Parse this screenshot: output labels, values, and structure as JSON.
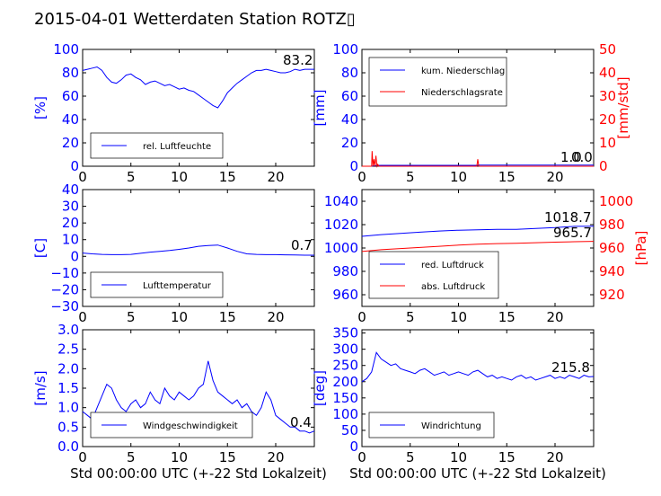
{
  "title": "2015-04-01 Wetterdaten Station ROTZ▯",
  "colors": {
    "primary": "#0000ff",
    "secondary": "#ff0000",
    "light": "#8080ff"
  },
  "chart_data": [
    {
      "id": "humidity",
      "type": "line",
      "ylabel": "[%]",
      "xlim": [
        0,
        24
      ],
      "ylim": [
        0,
        100
      ],
      "xticks": [
        0,
        5,
        10,
        15,
        20
      ],
      "yticks": [
        0,
        20,
        40,
        60,
        80,
        100
      ],
      "legend": {
        "placement": "lower-left",
        "entries": [
          "rel. Luftfeuchte"
        ]
      },
      "readouts": [
        "83.2"
      ],
      "series": [
        {
          "name": "rel. Luftfeuchte",
          "color": "#0000ff",
          "x": [
            0,
            0.5,
            1,
            1.5,
            2,
            2.5,
            3,
            3.5,
            4,
            4.5,
            5,
            5.5,
            6,
            6.5,
            7,
            7.5,
            8,
            8.5,
            9,
            9.5,
            10,
            10.5,
            11,
            11.5,
            12,
            12.5,
            13,
            13.5,
            14,
            14.5,
            15,
            15.5,
            16,
            16.5,
            17,
            17.5,
            18,
            18.5,
            19,
            19.5,
            20,
            20.5,
            21,
            21.5,
            22,
            22.5,
            23,
            23.5,
            24
          ],
          "y": [
            82,
            83,
            84,
            85,
            82,
            76,
            72,
            71,
            74,
            78,
            79,
            76,
            74,
            70,
            72,
            73,
            71,
            69,
            70,
            68,
            66,
            67,
            65,
            64,
            61,
            58,
            55,
            52,
            50,
            56,
            63,
            67,
            71,
            74,
            77,
            80,
            82,
            82,
            83,
            82,
            81,
            80,
            80,
            81,
            83,
            82,
            83,
            83,
            83
          ]
        }
      ]
    },
    {
      "id": "precip",
      "type": "line",
      "ylabel": "[mm]",
      "y2label": "[mm/std]",
      "xlim": [
        0,
        24
      ],
      "ylim": [
        0,
        100
      ],
      "y2lim": [
        0,
        50
      ],
      "xticks": [
        0,
        5,
        10,
        15,
        20
      ],
      "yticks": [
        0,
        20,
        40,
        60,
        80,
        100
      ],
      "y2ticks": [
        0,
        10,
        20,
        30,
        40,
        50
      ],
      "legend": {
        "placement": "upper-left",
        "entries": [
          "kum. Niederschlag",
          "Niederschlagsrate"
        ]
      },
      "readouts": [
        "1.0",
        "0.0"
      ],
      "series": [
        {
          "name": "kum. Niederschlag",
          "color": "#0000ff",
          "axis": "left",
          "x": [
            0,
            1.0,
            1.2,
            1.6,
            2,
            11.9,
            12.1,
            24
          ],
          "y": [
            0,
            0,
            0.4,
            0.7,
            0.8,
            0.8,
            1.0,
            1.0
          ]
        },
        {
          "name": "Niederschlagsrate",
          "color": "#ff0000",
          "axis": "right",
          "x": [
            0,
            1.0,
            1.05,
            1.15,
            1.25,
            1.35,
            1.45,
            1.55,
            1.65,
            1.75,
            11.9,
            12.0,
            12.1,
            24
          ],
          "y": [
            0,
            0,
            6.5,
            0,
            3,
            0,
            4.5,
            0,
            0.8,
            0,
            0,
            3,
            0,
            0
          ]
        }
      ]
    },
    {
      "id": "temp",
      "type": "line",
      "ylabel": "[C]",
      "xlim": [
        0,
        24
      ],
      "ylim": [
        -30,
        40
      ],
      "xticks": [
        0,
        5,
        10,
        15,
        20
      ],
      "yticks": [
        -30,
        -20,
        -10,
        0,
        10,
        20,
        30,
        40
      ],
      "legend": {
        "placement": "lower-left",
        "entries": [
          "Lufttemperatur"
        ]
      },
      "readouts": [
        "0.7"
      ],
      "series": [
        {
          "name": "Lufttemperatur",
          "color": "#0000ff",
          "x": [
            0,
            1,
            2,
            3,
            4,
            5,
            6,
            7,
            8,
            9,
            10,
            11,
            12,
            13,
            14,
            15,
            16,
            17,
            18,
            19,
            20,
            21,
            22,
            23,
            24
          ],
          "y": [
            2,
            1.5,
            1.2,
            1,
            1,
            1.2,
            1.8,
            2.5,
            3,
            3.5,
            4.2,
            5,
            6,
            6.5,
            6.8,
            5,
            3,
            1.5,
            1.2,
            1,
            1,
            0.9,
            0.8,
            0.7,
            0.7
          ]
        }
      ]
    },
    {
      "id": "pressure",
      "type": "line",
      "ylabel": "[hPa]",
      "xlim": [
        0,
        24
      ],
      "ylim": [
        950,
        1050
      ],
      "y2lim": [
        910,
        1010
      ],
      "xticks": [
        0,
        5,
        10,
        15,
        20
      ],
      "yticks": [
        960,
        980,
        1000,
        1020,
        1040
      ],
      "y2ticks": [
        920,
        940,
        960,
        980,
        1000
      ],
      "legend": {
        "placement": "lower-left",
        "entries": [
          "red. Luftdruck",
          "abs. Luftdruck"
        ]
      },
      "readouts": [
        "1018.7",
        "965.7"
      ],
      "series": [
        {
          "name": "red. Luftdruck",
          "color": "#0000ff",
          "axis": "left",
          "x": [
            0,
            2,
            4,
            6,
            8,
            10,
            12,
            14,
            16,
            18,
            20,
            22,
            24
          ],
          "y": [
            1010,
            1011.5,
            1012.5,
            1013.5,
            1014.5,
            1015.2,
            1015.6,
            1016,
            1016,
            1016.8,
            1017.5,
            1018.5,
            1018.7
          ]
        },
        {
          "name": "abs. Luftdruck",
          "color": "#ff0000",
          "axis": "right",
          "x": [
            0,
            2,
            4,
            6,
            8,
            10,
            12,
            14,
            16,
            18,
            20,
            22,
            24
          ],
          "y": [
            957,
            958.5,
            959.5,
            960.5,
            961.5,
            962.5,
            963.3,
            963.8,
            964,
            964.5,
            965,
            965.4,
            965.7
          ]
        }
      ]
    },
    {
      "id": "wind",
      "type": "line",
      "ylabel": "[m/s]",
      "xlabel": "Std 00:00:00 UTC (+-22 Std Lokalzeit)",
      "xlim": [
        0,
        24
      ],
      "ylim": [
        0,
        3.0
      ],
      "xticks": [
        0,
        5,
        10,
        15,
        20
      ],
      "yticks": [
        0.0,
        0.5,
        1.0,
        1.5,
        2.0,
        2.5,
        3.0
      ],
      "legend": {
        "placement": "lower-left",
        "entries": [
          "Windgeschwindigkeit"
        ]
      },
      "readouts": [
        "0.4"
      ],
      "series": [
        {
          "name": "Windgeschwindigkeit",
          "color": "#0000ff",
          "x": [
            0,
            0.5,
            1,
            1.5,
            2,
            2.5,
            3,
            3.5,
            4,
            4.5,
            5,
            5.5,
            6,
            6.5,
            7,
            7.5,
            8,
            8.5,
            9,
            9.5,
            10,
            10.5,
            11,
            11.5,
            12,
            12.5,
            13,
            13.5,
            14,
            14.5,
            15,
            15.5,
            16,
            16.5,
            17,
            17.5,
            18,
            18.5,
            19,
            19.5,
            20,
            20.5,
            21,
            21.5,
            22,
            22.5,
            23,
            23.5,
            24
          ],
          "y": [
            0.9,
            0.8,
            0.7,
            1.0,
            1.3,
            1.6,
            1.5,
            1.2,
            1.0,
            0.9,
            1.1,
            1.2,
            1.0,
            1.1,
            1.4,
            1.2,
            1.1,
            1.5,
            1.3,
            1.2,
            1.4,
            1.3,
            1.2,
            1.3,
            1.5,
            1.6,
            2.2,
            1.7,
            1.4,
            1.3,
            1.2,
            1.1,
            1.2,
            1.0,
            1.1,
            0.9,
            0.8,
            1.0,
            1.4,
            1.2,
            0.8,
            0.7,
            0.6,
            0.5,
            0.5,
            0.4,
            0.4,
            0.35,
            0.4
          ]
        }
      ]
    },
    {
      "id": "direction",
      "type": "line",
      "ylabel": "[deg]",
      "xlabel": "Std 00:00:00 UTC (+-22 Std Lokalzeit)",
      "xlim": [
        0,
        24
      ],
      "ylim": [
        0,
        360
      ],
      "xticks": [
        0,
        5,
        10,
        15,
        20
      ],
      "yticks": [
        0,
        50,
        100,
        150,
        200,
        250,
        300,
        350
      ],
      "legend": {
        "placement": "lower-left",
        "entries": [
          "Windrichtung"
        ]
      },
      "readouts": [
        "215.8"
      ],
      "series": [
        {
          "name": "Windrichtung",
          "color": "#0000ff",
          "x": [
            0,
            0.5,
            1,
            1.5,
            2,
            2.5,
            3,
            3.5,
            4,
            4.5,
            5,
            5.5,
            6,
            6.5,
            7,
            7.5,
            8,
            8.5,
            9,
            9.5,
            10,
            10.5,
            11,
            11.5,
            12,
            12.5,
            13,
            13.5,
            14,
            14.5,
            15,
            15.5,
            16,
            16.5,
            17,
            17.5,
            18,
            18.5,
            19,
            19.5,
            20,
            20.5,
            21,
            21.5,
            22,
            22.5,
            23,
            23.5,
            24
          ],
          "y": [
            200,
            210,
            230,
            290,
            270,
            260,
            250,
            255,
            240,
            235,
            230,
            225,
            235,
            240,
            230,
            220,
            225,
            230,
            220,
            225,
            230,
            225,
            220,
            230,
            235,
            225,
            215,
            220,
            210,
            215,
            210,
            205,
            215,
            220,
            210,
            215,
            205,
            210,
            215,
            220,
            210,
            215,
            210,
            220,
            215,
            210,
            220,
            215,
            216
          ]
        }
      ]
    }
  ]
}
